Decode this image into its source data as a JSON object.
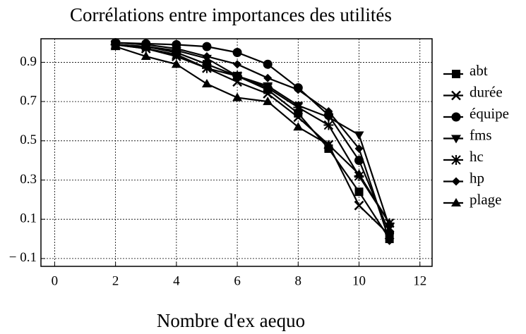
{
  "chart_data": {
    "type": "line",
    "title": "Corrélations entre importances des utilités",
    "xlabel": "Nombre d'ex aequo",
    "x": [
      2,
      3,
      4,
      5,
      6,
      7,
      8,
      9,
      10,
      11
    ],
    "series": [
      {
        "name": "abt",
        "color": "#000000",
        "marker": "square",
        "values": [
          0.99,
          0.98,
          0.95,
          0.89,
          0.83,
          0.76,
          0.64,
          0.46,
          0.24,
          0.0
        ]
      },
      {
        "name": "durée",
        "color": "#000000",
        "marker": "x",
        "values": [
          0.99,
          0.97,
          0.93,
          0.87,
          0.8,
          0.74,
          0.62,
          0.48,
          0.17,
          0.02
        ]
      },
      {
        "name": "équipe",
        "color": "#000000",
        "marker": "circle",
        "values": [
          1.0,
          0.995,
          0.99,
          0.98,
          0.95,
          0.89,
          0.77,
          0.63,
          0.4,
          0.03
        ]
      },
      {
        "name": "fms",
        "color": "#000000",
        "marker": "triangle-down",
        "values": [
          0.99,
          0.98,
          0.96,
          0.92,
          0.83,
          0.78,
          0.68,
          0.62,
          0.53,
          0.06
        ]
      },
      {
        "name": "hc",
        "color": "#000000",
        "marker": "asterisk",
        "values": [
          0.99,
          0.97,
          0.94,
          0.87,
          0.83,
          0.77,
          0.67,
          0.58,
          0.32,
          0.08
        ]
      },
      {
        "name": "hp",
        "color": "#000000",
        "marker": "diamond",
        "values": [
          1.0,
          0.99,
          0.97,
          0.93,
          0.89,
          0.82,
          0.76,
          0.65,
          0.46,
          -0.01
        ]
      },
      {
        "name": "plage",
        "color": "#000000",
        "marker": "triangle-up",
        "values": [
          0.98,
          0.93,
          0.89,
          0.79,
          0.72,
          0.7,
          0.57,
          0.48,
          0.33,
          0.08
        ]
      }
    ],
    "xlim": [
      -0.45,
      12.4
    ],
    "xticks": [
      0,
      2,
      4,
      6,
      8,
      10,
      12
    ],
    "ylim": [
      -0.14,
      1.02
    ],
    "yticks": [
      {
        "value": -0.1,
        "label": "− 0.1"
      },
      0.1,
      0.3,
      0.5,
      0.7,
      0.9
    ],
    "grid": true,
    "legend": "right"
  }
}
